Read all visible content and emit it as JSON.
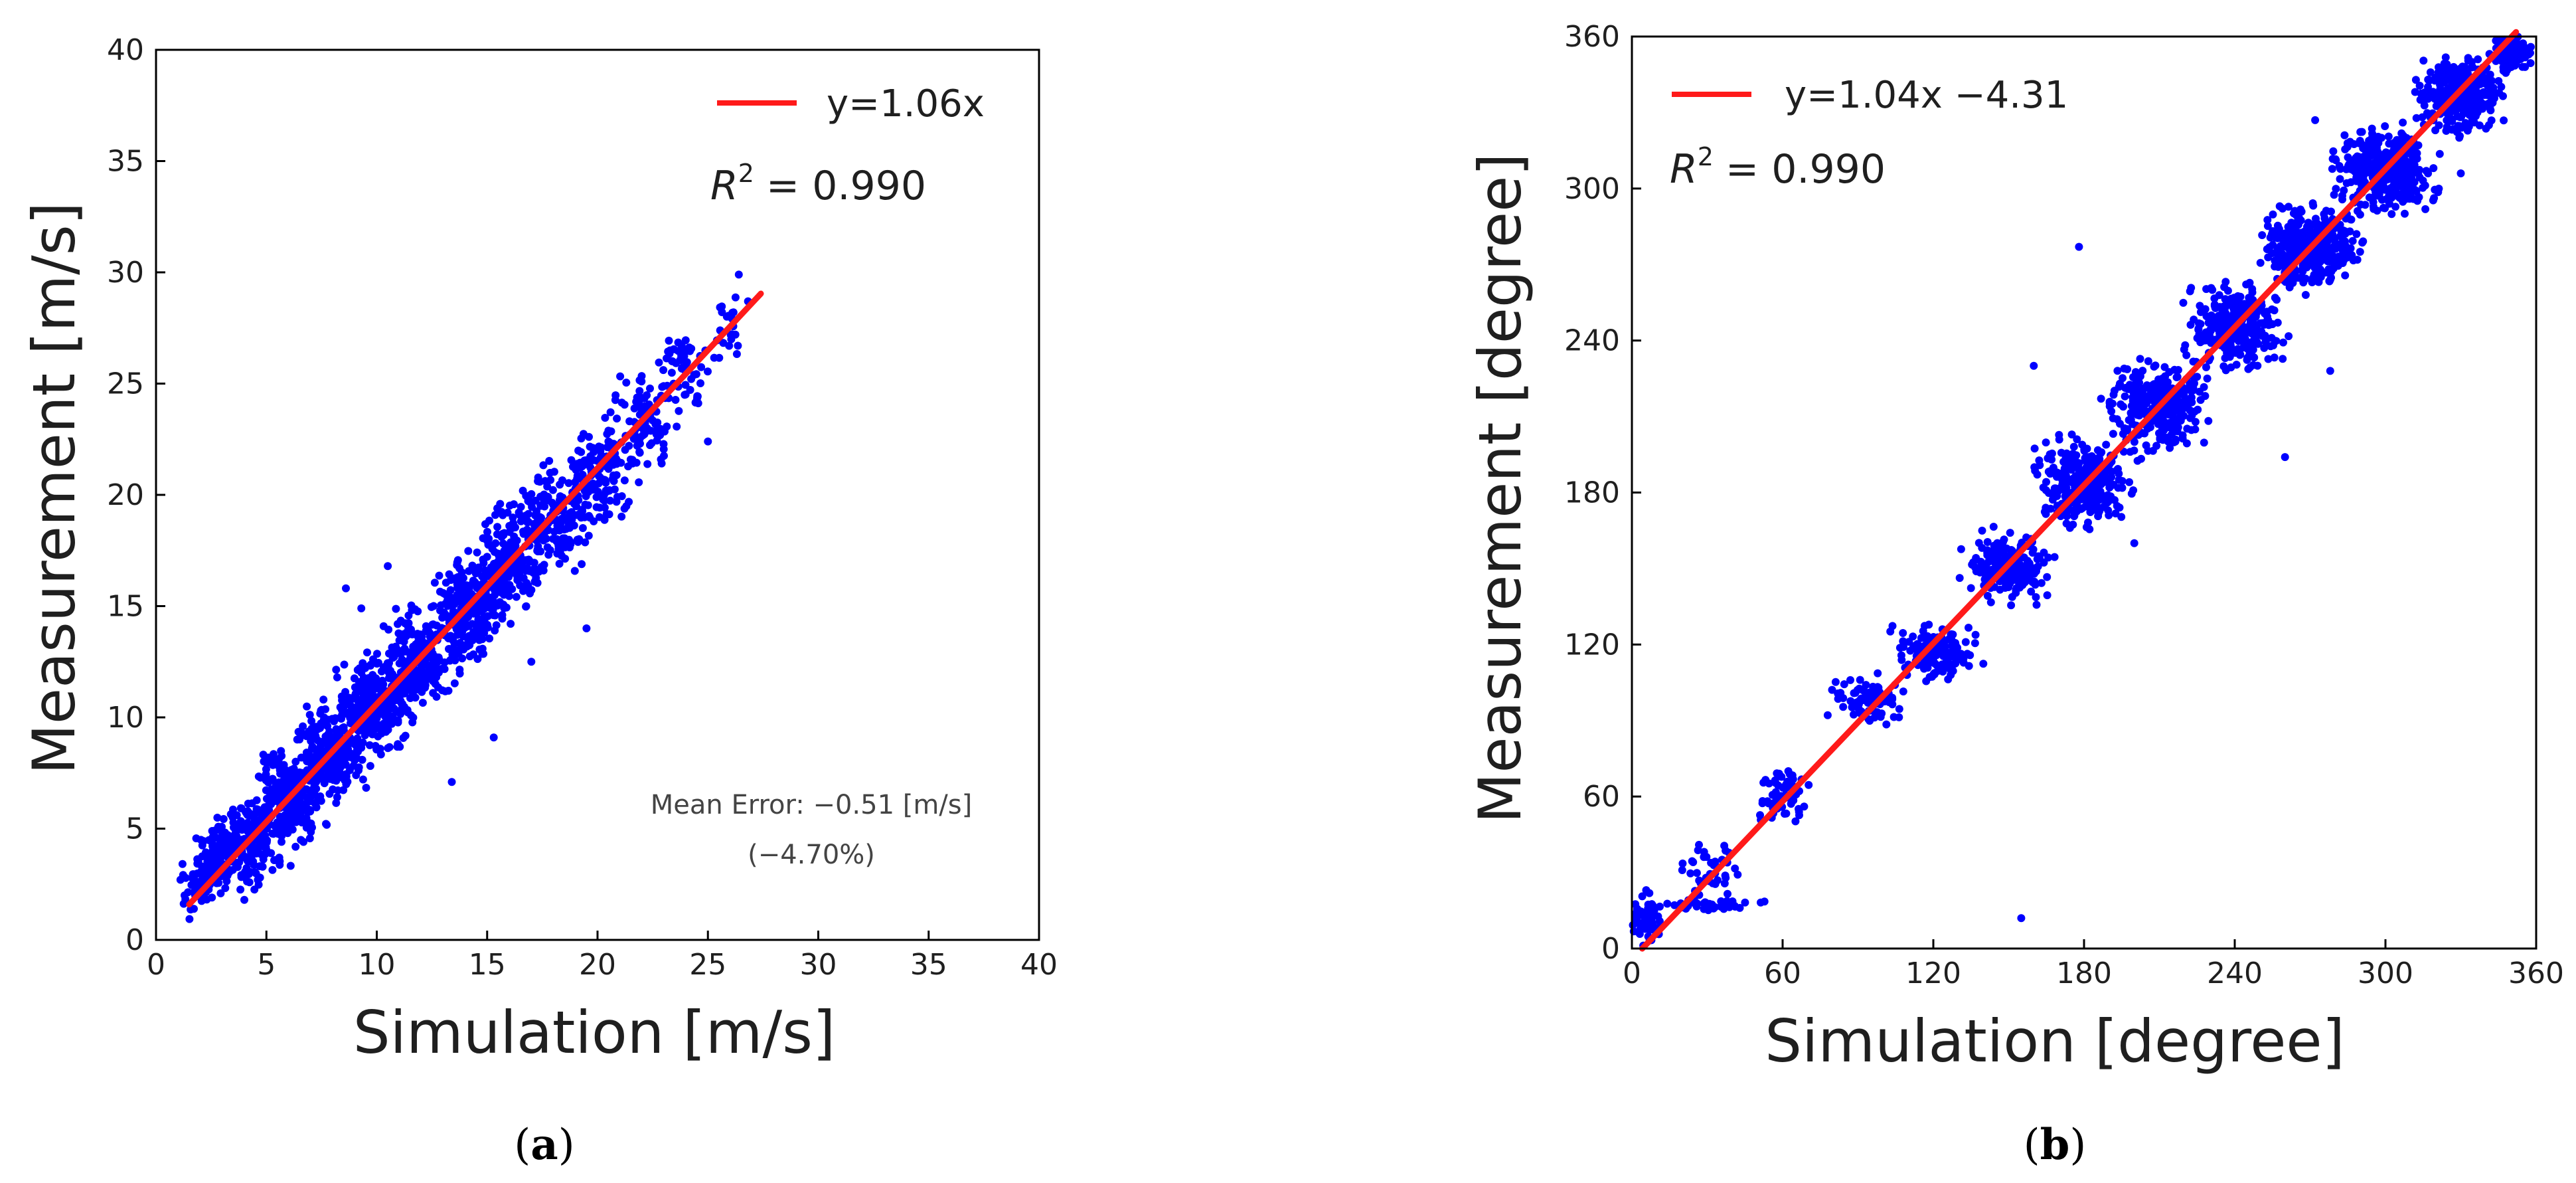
{
  "figure": {
    "background": "#ffffff"
  },
  "chart_data": [
    {
      "type": "scatter",
      "panel_label": "a",
      "caption_open": "(",
      "caption_close": ")",
      "xlabel": "Simulation [m/s]",
      "ylabel": "Measurement [m/s]",
      "xlim": [
        0,
        40
      ],
      "ylim": [
        0,
        40
      ],
      "xticks": [
        0,
        5,
        10,
        15,
        20,
        25,
        30,
        35,
        40
      ],
      "yticks": [
        0,
        5,
        10,
        15,
        20,
        25,
        30,
        35,
        40
      ],
      "tick_labels_x": [
        "0",
        "5",
        "10",
        "15",
        "20",
        "25",
        "30",
        "35",
        "40"
      ],
      "tick_labels_y": [
        "0",
        "5",
        "10",
        "15",
        "20",
        "25",
        "30",
        "35",
        "40"
      ],
      "grid": false,
      "legend": {
        "location": "top-right",
        "entries": [
          {
            "label": "y=1.06x",
            "color": "#ff1a1a"
          }
        ]
      },
      "r2_label": "R",
      "r2_superscript": "2",
      "r2_value": "= 0.990",
      "annotation_line1": "Mean Error: −0.51 [m/s]",
      "annotation_line2": "(−4.70%)",
      "fit_line": {
        "slope": 1.06,
        "intercept": 0,
        "x_start": 1.5,
        "x_end": 27.4,
        "color": "#ff1a1a"
      },
      "scatter_color": "#0000ff",
      "scatter_clusters": [
        {
          "x": 1.6,
          "y": 2.2,
          "spread_x": 0.5,
          "spread_y": 0.9,
          "n": 20
        },
        {
          "x": 2.5,
          "y": 3.2,
          "spread_x": 0.8,
          "spread_y": 1.2,
          "n": 100
        },
        {
          "x": 4.0,
          "y": 4.5,
          "spread_x": 1.2,
          "spread_y": 1.4,
          "n": 220
        },
        {
          "x": 6.0,
          "y": 6.4,
          "spread_x": 1.2,
          "spread_y": 1.5,
          "n": 260
        },
        {
          "x": 8.0,
          "y": 8.5,
          "spread_x": 1.2,
          "spread_y": 1.5,
          "n": 260
        },
        {
          "x": 10.0,
          "y": 10.6,
          "spread_x": 1.2,
          "spread_y": 1.6,
          "n": 260
        },
        {
          "x": 12.0,
          "y": 12.7,
          "spread_x": 1.2,
          "spread_y": 1.6,
          "n": 240
        },
        {
          "x": 14.0,
          "y": 14.8,
          "spread_x": 1.2,
          "spread_y": 1.7,
          "n": 220
        },
        {
          "x": 16.0,
          "y": 17.0,
          "spread_x": 1.2,
          "spread_y": 1.7,
          "n": 200
        },
        {
          "x": 18.0,
          "y": 19.0,
          "spread_x": 1.2,
          "spread_y": 1.7,
          "n": 170
        },
        {
          "x": 20.0,
          "y": 21.1,
          "spread_x": 1.1,
          "spread_y": 1.6,
          "n": 130
        },
        {
          "x": 22.0,
          "y": 23.3,
          "spread_x": 1.1,
          "spread_y": 1.6,
          "n": 90
        },
        {
          "x": 24.0,
          "y": 25.5,
          "spread_x": 1.0,
          "spread_y": 1.5,
          "n": 55
        },
        {
          "x": 26.0,
          "y": 27.6,
          "spread_x": 0.8,
          "spread_y": 1.2,
          "n": 22
        }
      ],
      "scatter_outliers": [
        {
          "x": 8.6,
          "y": 15.8
        },
        {
          "x": 9.3,
          "y": 14.9
        },
        {
          "x": 15.3,
          "y": 9.1
        },
        {
          "x": 13.4,
          "y": 7.1
        },
        {
          "x": 4.0,
          "y": 1.8
        },
        {
          "x": 17.0,
          "y": 12.5
        },
        {
          "x": 19.5,
          "y": 14.0
        },
        {
          "x": 26.4,
          "y": 29.9
        },
        {
          "x": 25.0,
          "y": 22.4
        },
        {
          "x": 10.5,
          "y": 16.8
        }
      ]
    },
    {
      "type": "scatter",
      "panel_label": "b",
      "caption_open": "(",
      "caption_close": ")",
      "xlabel": "Simulation [degree]",
      "ylabel": "Measurement [degree]",
      "xlim": [
        0,
        360
      ],
      "ylim": [
        0,
        360
      ],
      "xticks": [
        0,
        60,
        120,
        180,
        240,
        300,
        360
      ],
      "yticks": [
        0,
        60,
        120,
        180,
        240,
        300,
        360
      ],
      "tick_labels_x": [
        "0",
        "60",
        "120",
        "180",
        "240",
        "300",
        "360"
      ],
      "tick_labels_y": [
        "0",
        "60",
        "120",
        "180",
        "240",
        "300",
        "360"
      ],
      "grid": false,
      "legend": {
        "location": "top-left",
        "entries": [
          {
            "label": "y=1.04x −4.31",
            "color": "#ff1a1a"
          }
        ]
      },
      "r2_label": "R",
      "r2_superscript": "2",
      "r2_value": "= 0.990",
      "fit_line": {
        "slope": 1.04,
        "intercept": -4.31,
        "x_start": 4.1,
        "x_end": 352,
        "color": "#ff1a1a"
      },
      "scatter_color": "#0000ff",
      "scatter_clusters": [
        {
          "x": 6,
          "y": 12,
          "spread_x": 5,
          "spread_y": 8,
          "n": 60
        },
        {
          "x": 35,
          "y": 17,
          "spread_x": 14,
          "spread_y": 1.5,
          "n": 45
        },
        {
          "x": 32,
          "y": 30,
          "spread_x": 10,
          "spread_y": 9,
          "n": 40
        },
        {
          "x": 60,
          "y": 62,
          "spread_x": 8,
          "spread_y": 10,
          "n": 60
        },
        {
          "x": 95,
          "y": 98,
          "spread_x": 10,
          "spread_y": 7,
          "n": 80
        },
        {
          "x": 120,
          "y": 117,
          "spread_x": 12,
          "spread_y": 8,
          "n": 150
        },
        {
          "x": 150,
          "y": 150,
          "spread_x": 12,
          "spread_y": 10,
          "n": 220
        },
        {
          "x": 180,
          "y": 184,
          "spread_x": 14,
          "spread_y": 12,
          "n": 320
        },
        {
          "x": 210,
          "y": 214,
          "spread_x": 14,
          "spread_y": 12,
          "n": 320
        },
        {
          "x": 240,
          "y": 245,
          "spread_x": 14,
          "spread_y": 12,
          "n": 340
        },
        {
          "x": 270,
          "y": 277,
          "spread_x": 14,
          "spread_y": 12,
          "n": 380
        },
        {
          "x": 300,
          "y": 307,
          "spread_x": 14,
          "spread_y": 12,
          "n": 400
        },
        {
          "x": 330,
          "y": 337,
          "spread_x": 12,
          "spread_y": 11,
          "n": 340
        },
        {
          "x": 350,
          "y": 354,
          "spread_x": 6,
          "spread_y": 5,
          "n": 120
        }
      ],
      "scatter_outliers": [
        {
          "x": 155,
          "y": 12
        },
        {
          "x": 260,
          "y": 194
        },
        {
          "x": 278,
          "y": 228
        },
        {
          "x": 178,
          "y": 277
        },
        {
          "x": 272,
          "y": 327
        },
        {
          "x": 330,
          "y": 306
        },
        {
          "x": 160,
          "y": 230
        },
        {
          "x": 200,
          "y": 160
        }
      ]
    }
  ]
}
